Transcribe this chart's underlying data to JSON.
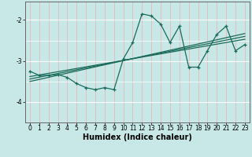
{
  "xlabel": "Humidex (Indice chaleur)",
  "ylabel": "",
  "bg_color": "#c8e8e8",
  "grid_color_h": "#ffffff",
  "grid_color_v": "#e8b8b8",
  "line_color": "#1a6b5a",
  "xlim": [
    -0.5,
    23.5
  ],
  "ylim": [
    -4.5,
    -1.55
  ],
  "yticks": [
    -4,
    -3,
    -2
  ],
  "xticks": [
    0,
    1,
    2,
    3,
    4,
    5,
    6,
    7,
    8,
    9,
    10,
    11,
    12,
    13,
    14,
    15,
    16,
    17,
    18,
    19,
    20,
    21,
    22,
    23
  ],
  "main_x": [
    0,
    1,
    2,
    3,
    4,
    5,
    6,
    7,
    8,
    9,
    10,
    11,
    12,
    13,
    14,
    15,
    16,
    17,
    18,
    19,
    20,
    21,
    22,
    23
  ],
  "main_y": [
    -3.25,
    -3.35,
    -3.35,
    -3.33,
    -3.4,
    -3.55,
    -3.65,
    -3.7,
    -3.65,
    -3.7,
    -2.95,
    -2.55,
    -1.85,
    -1.9,
    -2.1,
    -2.55,
    -2.15,
    -3.15,
    -3.15,
    -2.75,
    -2.35,
    -2.15,
    -2.75,
    -2.6
  ],
  "reg_lines": [
    {
      "x": [
        0,
        23
      ],
      "y": [
        -3.38,
        -2.47
      ]
    },
    {
      "x": [
        0,
        23
      ],
      "y": [
        -3.44,
        -2.4
      ]
    },
    {
      "x": [
        0,
        23
      ],
      "y": [
        -3.5,
        -2.33
      ]
    }
  ],
  "tick_fontsize": 5.5,
  "label_fontsize": 7
}
